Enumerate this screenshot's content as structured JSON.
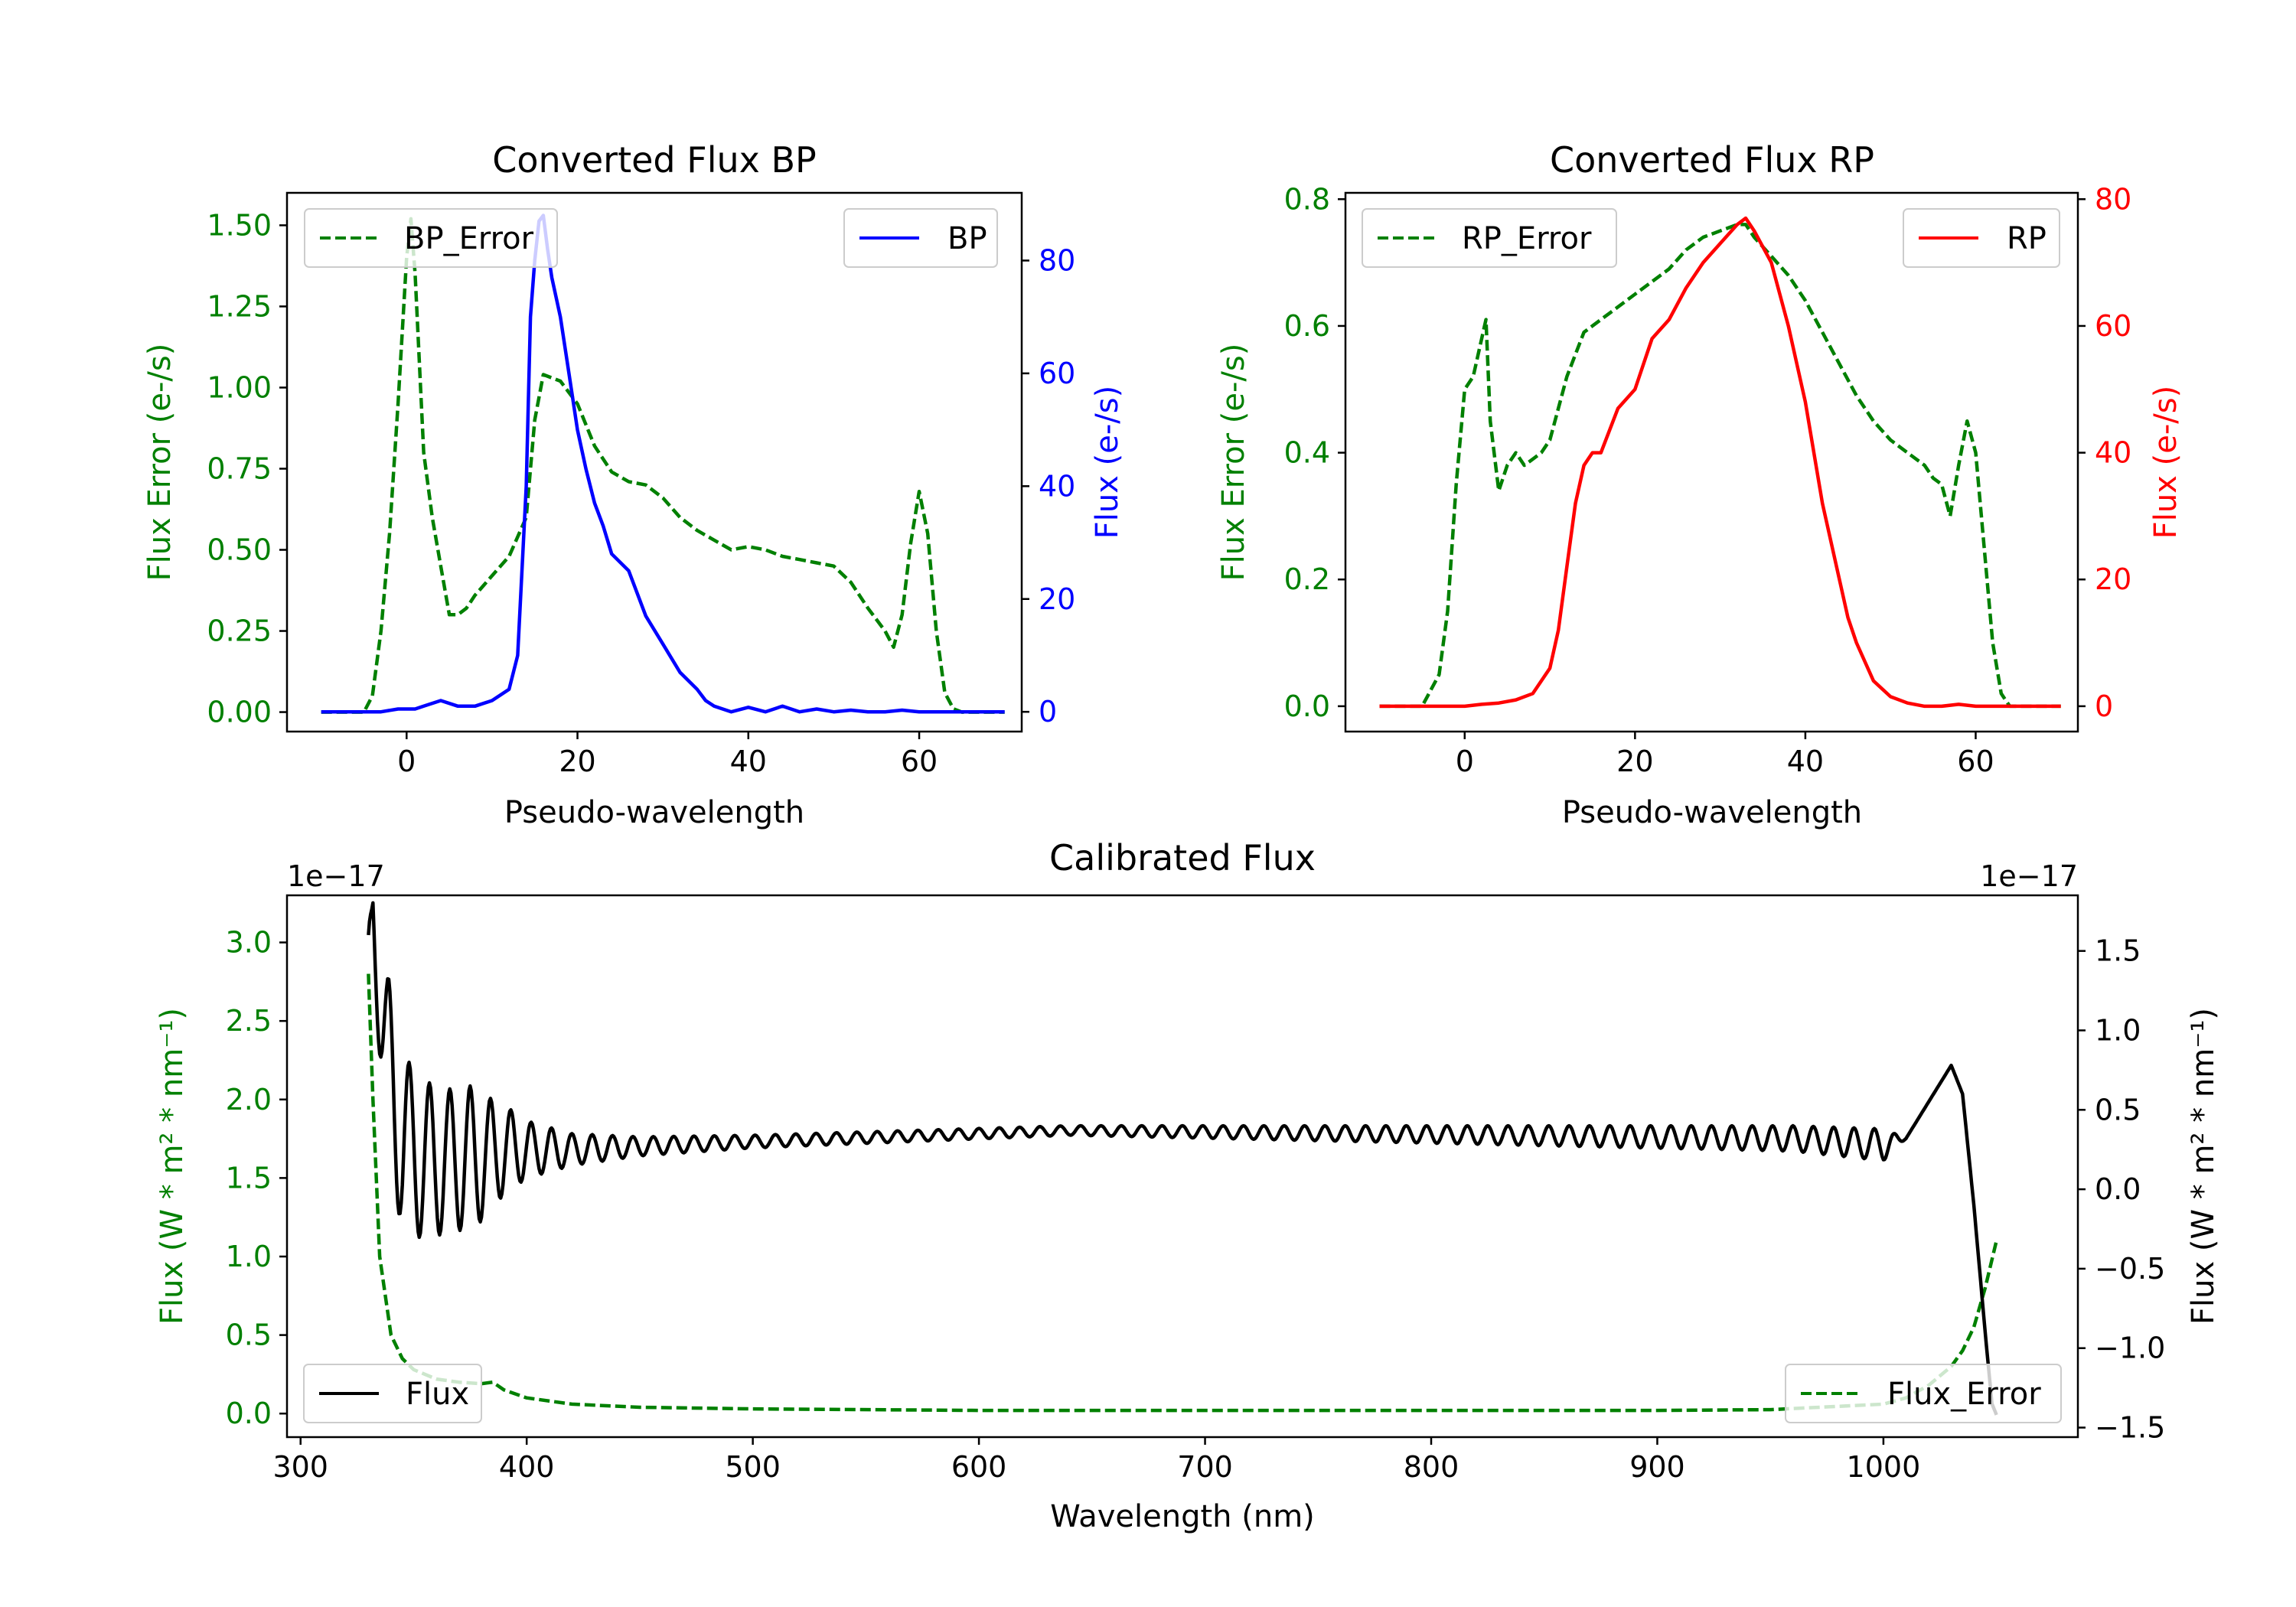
{
  "colors": {
    "green": "#008000",
    "blue": "#0000ff",
    "red": "#ff0000",
    "black": "#000000"
  },
  "chart_data": [
    {
      "type": "line",
      "title": "Converted Flux BP",
      "xlabel": "Pseudo-wavelength",
      "ylabel_left": "Flux Error (e-/s)",
      "ylabel_right": "Flux (e-/s)",
      "xlim": [
        -14,
        72
      ],
      "ylim_left": [
        -0.06,
        1.6
      ],
      "ylim_right": [
        -3.5,
        92
      ],
      "xticks": [
        0,
        20,
        40,
        60
      ],
      "yticks_left": [
        0.0,
        0.25,
        0.5,
        0.75,
        1.0,
        1.25,
        1.5
      ],
      "yticks_left_labels": [
        "0.00",
        "0.25",
        "0.50",
        "0.75",
        "1.00",
        "1.25",
        "1.50"
      ],
      "yticks_right": [
        0,
        20,
        40,
        60,
        80
      ],
      "series": [
        {
          "name": "BP_Error",
          "axis": "left",
          "style": "dashed",
          "color": "#008000",
          "x": [
            -10,
            -5,
            -4,
            -3,
            -2,
            -1,
            0,
            0.5,
            1,
            2,
            3,
            4,
            5,
            6,
            7,
            8,
            10,
            12,
            14,
            15,
            16,
            18,
            20,
            22,
            24,
            26,
            28,
            30,
            32,
            34,
            36,
            38,
            40,
            42,
            44,
            46,
            48,
            50,
            52,
            54,
            56,
            57,
            58,
            59,
            60,
            61,
            62,
            63,
            64,
            65,
            66,
            68,
            70
          ],
          "y": [
            0,
            0,
            0.05,
            0.25,
            0.55,
            0.95,
            1.4,
            1.52,
            1.35,
            0.8,
            0.6,
            0.45,
            0.3,
            0.3,
            0.32,
            0.36,
            0.42,
            0.48,
            0.6,
            0.9,
            1.04,
            1.02,
            0.95,
            0.82,
            0.74,
            0.71,
            0.7,
            0.66,
            0.6,
            0.56,
            0.53,
            0.5,
            0.51,
            0.5,
            0.48,
            0.47,
            0.46,
            0.45,
            0.4,
            0.32,
            0.25,
            0.2,
            0.3,
            0.52,
            0.68,
            0.55,
            0.25,
            0.06,
            0.01,
            0,
            0,
            0,
            0
          ]
        },
        {
          "name": "BP",
          "axis": "right",
          "style": "solid",
          "color": "#0000ff",
          "x": [
            -10,
            -5,
            -3,
            -1,
            1,
            2,
            4,
            6,
            8,
            10,
            12,
            13,
            14,
            14.5,
            15,
            15.5,
            16,
            16.5,
            17,
            18,
            19,
            20,
            21,
            22,
            23,
            24,
            26,
            28,
            30,
            32,
            34,
            35,
            36,
            37,
            38,
            40,
            42,
            44,
            46,
            48,
            50,
            52,
            54,
            56,
            58,
            60,
            62,
            64,
            66,
            68,
            70
          ],
          "y": [
            0,
            0,
            0,
            0.5,
            0.5,
            1,
            2,
            1,
            1,
            2,
            4,
            10,
            40,
            70,
            80,
            87,
            88,
            82,
            77,
            70,
            60,
            50,
            43,
            37,
            33,
            28,
            25,
            17,
            12,
            7,
            4,
            2,
            1,
            0.5,
            0,
            0.8,
            0,
            1,
            0,
            0.5,
            0,
            0.3,
            0,
            0,
            0.3,
            0,
            0,
            0,
            0,
            0,
            0
          ]
        }
      ]
    },
    {
      "type": "line",
      "title": "Converted Flux RP",
      "xlabel": "Pseudo-wavelength",
      "ylabel_left": "Flux Error (e-/s)",
      "ylabel_right": "Flux (e-/s)",
      "xlim": [
        -14,
        72
      ],
      "ylim_left": [
        -0.04,
        0.81
      ],
      "ylim_right": [
        -4,
        81
      ],
      "xticks": [
        0,
        20,
        40,
        60
      ],
      "yticks_left": [
        0.0,
        0.2,
        0.4,
        0.6,
        0.8
      ],
      "yticks_left_labels": [
        "0.0",
        "0.2",
        "0.4",
        "0.6",
        "0.8"
      ],
      "yticks_right": [
        0,
        20,
        40,
        60,
        80
      ],
      "series": [
        {
          "name": "RP_Error",
          "axis": "left",
          "style": "dashed",
          "color": "#008000",
          "x": [
            -10,
            -5,
            -3,
            -2,
            -1,
            0,
            1,
            2,
            2.5,
            3,
            4,
            5,
            6,
            7,
            8,
            9,
            10,
            12,
            14,
            16,
            18,
            20,
            22,
            24,
            26,
            28,
            30,
            32,
            33,
            34,
            36,
            38,
            40,
            42,
            44,
            46,
            48,
            50,
            52,
            54,
            55,
            56,
            57,
            58,
            59,
            60,
            61,
            62,
            63,
            64,
            66,
            68,
            70
          ],
          "y": [
            0,
            0,
            0.05,
            0.15,
            0.35,
            0.5,
            0.52,
            0.58,
            0.61,
            0.45,
            0.34,
            0.38,
            0.4,
            0.38,
            0.39,
            0.4,
            0.42,
            0.52,
            0.59,
            0.61,
            0.63,
            0.65,
            0.67,
            0.69,
            0.72,
            0.74,
            0.75,
            0.76,
            0.76,
            0.74,
            0.71,
            0.68,
            0.64,
            0.59,
            0.54,
            0.49,
            0.45,
            0.42,
            0.4,
            0.38,
            0.36,
            0.35,
            0.3,
            0.38,
            0.45,
            0.4,
            0.25,
            0.1,
            0.02,
            0,
            0,
            0,
            0
          ]
        },
        {
          "name": "RP",
          "axis": "right",
          "style": "solid",
          "color": "#ff0000",
          "x": [
            -10,
            -5,
            0,
            2,
            4,
            6,
            8,
            10,
            11,
            12,
            13,
            14,
            15,
            16,
            18,
            20,
            22,
            24,
            26,
            28,
            30,
            32,
            33,
            34,
            36,
            38,
            40,
            42,
            44,
            45,
            46,
            48,
            50,
            52,
            54,
            56,
            58,
            60,
            62,
            64,
            66,
            68,
            70
          ],
          "y": [
            0,
            0,
            0,
            0.3,
            0.5,
            1,
            2,
            6,
            12,
            22,
            32,
            38,
            40,
            40,
            47,
            50,
            58,
            61,
            66,
            70,
            73,
            76,
            77,
            75,
            70,
            60,
            48,
            32,
            20,
            14,
            10,
            4,
            1.5,
            0.5,
            0,
            0,
            0.3,
            0,
            0,
            0,
            0,
            0,
            0
          ]
        }
      ]
    },
    {
      "type": "line",
      "title": "Calibrated Flux",
      "xlabel": "Wavelength (nm)",
      "ylabel_left": "Flux (W * m² * nm⁻¹)",
      "ylabel_right": "Flux (W * m² * nm⁻¹)",
      "offset_left": "1e−17",
      "offset_right": "1e−17",
      "xlim": [
        294,
        1086
      ],
      "ylim_left": [
        -0.15,
        3.3
      ],
      "ylim_right": [
        -1.56,
        1.85
      ],
      "xticks": [
        300,
        400,
        500,
        600,
        700,
        800,
        900,
        1000
      ],
      "yticks_left": [
        0.0,
        0.5,
        1.0,
        1.5,
        2.0,
        2.5,
        3.0
      ],
      "yticks_left_labels": [
        "0.0",
        "0.5",
        "1.0",
        "1.5",
        "2.0",
        "2.5",
        "3.0"
      ],
      "yticks_right": [
        -1.5,
        -1.0,
        -0.5,
        0.0,
        0.5,
        1.0,
        1.5
      ],
      "yticks_right_labels": [
        "−1.5",
        "−1.0",
        "−0.5",
        "0.0",
        "0.5",
        "1.0",
        "1.5"
      ],
      "series": [
        {
          "name": "Flux_Error",
          "axis": "left",
          "style": "dashed",
          "color": "#008000",
          "x": [
            330,
            332,
            335,
            340,
            345,
            350,
            360,
            370,
            380,
            385,
            390,
            400,
            420,
            450,
            500,
            600,
            700,
            800,
            900,
            950,
            1000,
            1010,
            1020,
            1030,
            1035,
            1040,
            1045,
            1050
          ],
          "y": [
            2.8,
            2.0,
            1.0,
            0.5,
            0.35,
            0.28,
            0.22,
            0.2,
            0.19,
            0.2,
            0.15,
            0.1,
            0.06,
            0.04,
            0.03,
            0.02,
            0.02,
            0.02,
            0.02,
            0.025,
            0.06,
            0.1,
            0.18,
            0.3,
            0.4,
            0.55,
            0.8,
            1.1
          ]
        },
        {
          "name": "Flux",
          "axis": "right",
          "style": "solid",
          "color": "#000000",
          "x_start": 330,
          "x_end": 1050,
          "anchors_x": [
            330,
            332,
            338,
            345,
            355,
            365,
            375,
            380,
            390,
            400,
            420,
            450,
            500,
            640,
            960,
            1000,
            1010,
            1020,
            1030,
            1035,
            1040,
            1045,
            1048,
            1050
          ],
          "anchors_y": [
            1.1,
            1.75,
            0.8,
            0.3,
            0.18,
            0.18,
            0.2,
            0.2,
            0.25,
            0.25,
            0.25,
            0.27,
            0.3,
            0.37,
            0.32,
            0.28,
            0.32,
            0.55,
            0.78,
            0.6,
            -0.1,
            -0.9,
            -1.35,
            -1.42
          ],
          "anchors_amp": [
            0.5,
            0.3,
            0.6,
            0.55,
            0.5,
            0.45,
            0.45,
            0.4,
            0.28,
            0.18,
            0.1,
            0.06,
            0.04,
            0.03,
            0.08,
            0.1,
            0,
            0,
            0,
            0,
            0,
            0,
            0,
            0
          ],
          "ripple_period_nm": 9
        }
      ]
    }
  ],
  "legends": [
    {
      "left": "BP_Error",
      "right": "BP"
    },
    {
      "left": "RP_Error",
      "right": "RP"
    },
    {
      "left": "Flux",
      "right": "Flux_Error"
    }
  ]
}
